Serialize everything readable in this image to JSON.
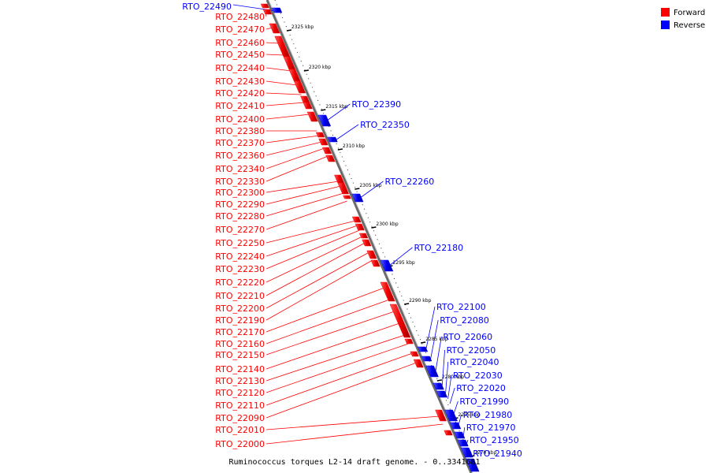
{
  "legend": {
    "forward": {
      "label": "Forward",
      "color": "#ff0000"
    },
    "reverse": {
      "label": "Reverse",
      "color": "#0000ff"
    }
  },
  "caption": "Ruminococcus torques L2-14 draft genome. - 0..3341681",
  "scale_ticks": [
    "2325 kbp",
    "2320 kbp",
    "2315 kbp",
    "2310 kbp",
    "2305 kbp",
    "2300 kbp",
    "2295 kbp",
    "2290 kbp",
    "2285 kbp",
    "2280 kbp",
    "2275 kbp",
    "2270 kbp"
  ],
  "genes_forward": [
    "RTO_22480",
    "RTO_22470",
    "RTO_22460",
    "RTO_22450",
    "RTO_22440",
    "RTO_22430",
    "RTO_22420",
    "RTO_22410",
    "RTO_22400",
    "RTO_22380",
    "RTO_22370",
    "RTO_22360",
    "RTO_22340",
    "RTO_22330",
    "RTO_22300",
    "RTO_22290",
    "RTO_22280",
    "RTO_22270",
    "RTO_22250",
    "RTO_22240",
    "RTO_22230",
    "RTO_22220",
    "RTO_22210",
    "RTO_22200",
    "RTO_22190",
    "RTO_22170",
    "RTO_22160",
    "RTO_22150",
    "RTO_22140",
    "RTO_22130",
    "RTO_22120",
    "RTO_22110",
    "RTO_22090",
    "RTO_22010",
    "RTO_22000"
  ],
  "genes_reverse": [
    "RTO_22490",
    "RTO_22390",
    "RTO_22350",
    "RTO_22260",
    "RTO_22180",
    "RTO_22100",
    "RTO_22080",
    "RTO_22060",
    "RTO_22050",
    "RTO_22040",
    "RTO_22030",
    "RTO_22020",
    "RTO_21990",
    "RTO_21980",
    "RTO_21970",
    "RTO_21950",
    "RTO_21940"
  ]
}
